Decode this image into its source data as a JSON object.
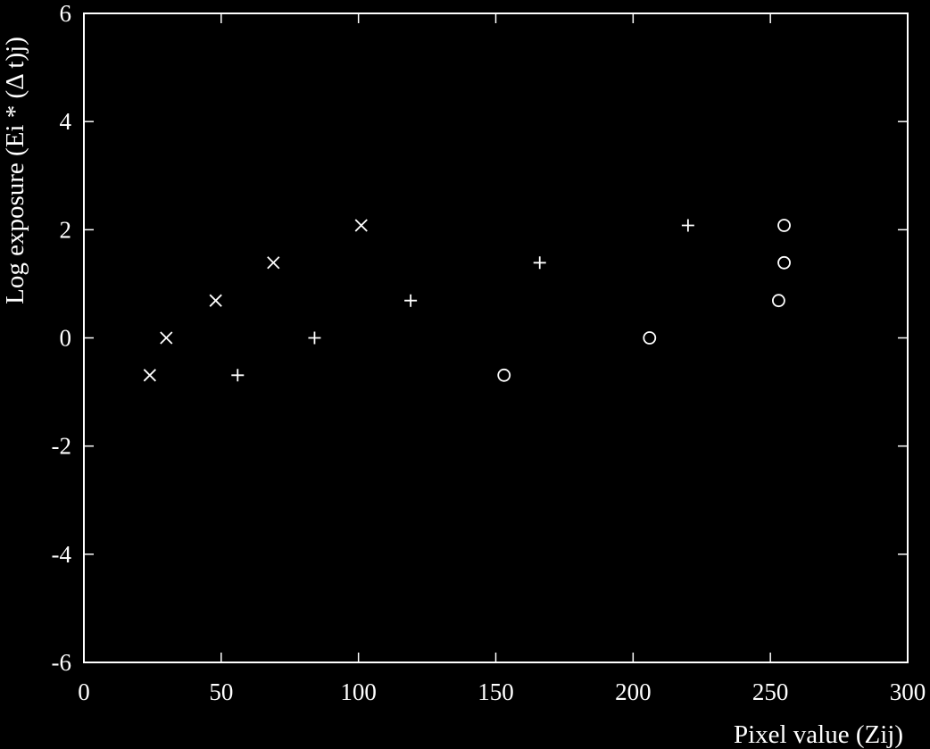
{
  "colors": {
    "background": "#000000",
    "foreground": "#ffffff"
  },
  "chart_data": {
    "type": "scatter",
    "title": "",
    "xlabel": "Pixel value (Zij)",
    "ylabel": "Log exposure (Ei * (Δ t)j)",
    "xlim": [
      0,
      300
    ],
    "ylim": [
      -6,
      6
    ],
    "xticks": [
      0,
      50,
      100,
      150,
      200,
      250,
      300
    ],
    "yticks": [
      -6,
      -4,
      -2,
      0,
      2,
      4,
      6
    ],
    "xtick_labels": [
      "0",
      "50",
      "100",
      "150",
      "200",
      "250",
      "300"
    ],
    "ytick_labels": [
      "-6",
      "-4",
      "-2",
      "0",
      "2",
      "4",
      "6"
    ],
    "grid": false,
    "legend": "none",
    "series": [
      {
        "marker": "x",
        "points": [
          {
            "x": 24,
            "y": -0.69
          },
          {
            "x": 30,
            "y": 0.0
          },
          {
            "x": 48,
            "y": 0.69
          },
          {
            "x": 69,
            "y": 1.39
          },
          {
            "x": 101,
            "y": 2.08
          }
        ]
      },
      {
        "marker": "plus",
        "points": [
          {
            "x": 56,
            "y": -0.69
          },
          {
            "x": 84,
            "y": 0.0
          },
          {
            "x": 119,
            "y": 0.69
          },
          {
            "x": 166,
            "y": 1.39
          },
          {
            "x": 220,
            "y": 2.08
          }
        ]
      },
      {
        "marker": "circle",
        "points": [
          {
            "x": 153,
            "y": -0.69
          },
          {
            "x": 206,
            "y": 0.0
          },
          {
            "x": 253,
            "y": 0.69
          },
          {
            "x": 255,
            "y": 1.39
          },
          {
            "x": 255,
            "y": 2.08
          }
        ]
      }
    ]
  }
}
